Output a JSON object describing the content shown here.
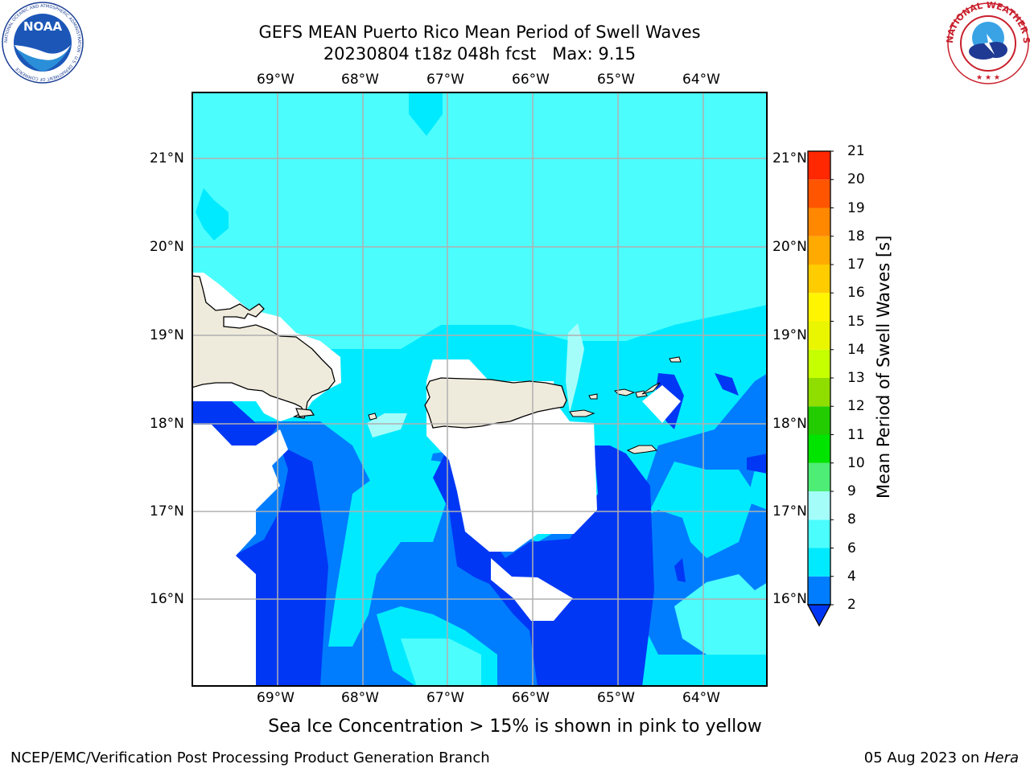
{
  "title": {
    "line1": "GEFS MEAN Puerto Rico Mean Period of Swell Waves",
    "line2": "20230804 t18z 048h fcst   Max: 9.15"
  },
  "logos": {
    "left": {
      "icon": "noaa-logo",
      "text": "NOAA",
      "ring_text": "NATIONAL OCEANIC AND ATMOSPHERIC ADMINISTRATION · U.S. DEPARTMENT OF COMMERCE"
    },
    "right": {
      "icon": "national-weather-service-logo",
      "ring_text": "NATIONAL WEATHER SERVICE"
    }
  },
  "map": {
    "lon_labels": [
      "69°W",
      "68°W",
      "67°W",
      "66°W",
      "65°W",
      "64°W"
    ],
    "lat_labels": [
      "21°N",
      "20°N",
      "19°N",
      "18°N",
      "17°N",
      "16°N"
    ],
    "lon_range": [
      -70,
      -63.25
    ],
    "lat_range": [
      15,
      21.75
    ],
    "grid": true,
    "land_color": "#efebdc",
    "missing_color": "#ffffff"
  },
  "colorbar": {
    "title": "Mean Period of Swell Waves [s]",
    "ticks": [
      "2",
      "4",
      "6",
      "8",
      "9",
      "10",
      "11",
      "12",
      "13",
      "14",
      "15",
      "16",
      "17",
      "18",
      "19",
      "20",
      "21"
    ],
    "colors": [
      "#0037f5",
      "#007dff",
      "#00eaff",
      "#4cfdfd",
      "#a5fdfa",
      "#4eed76",
      "#00e400",
      "#22cc00",
      "#90dd00",
      "#c6ff00",
      "#eaf500",
      "#fff500",
      "#ffcc00",
      "#ffaa00",
      "#ff8800",
      "#ff5500",
      "#ff2800",
      "#ff0000"
    ],
    "extend": "min"
  },
  "note": "Sea Ice Concentration > 15% is shown in pink to yellow",
  "footer": {
    "left": "NCEP/EMC/Verification Post Processing Product Generation Branch",
    "date": "05 Aug 2023 on ",
    "machine": "Hera"
  }
}
